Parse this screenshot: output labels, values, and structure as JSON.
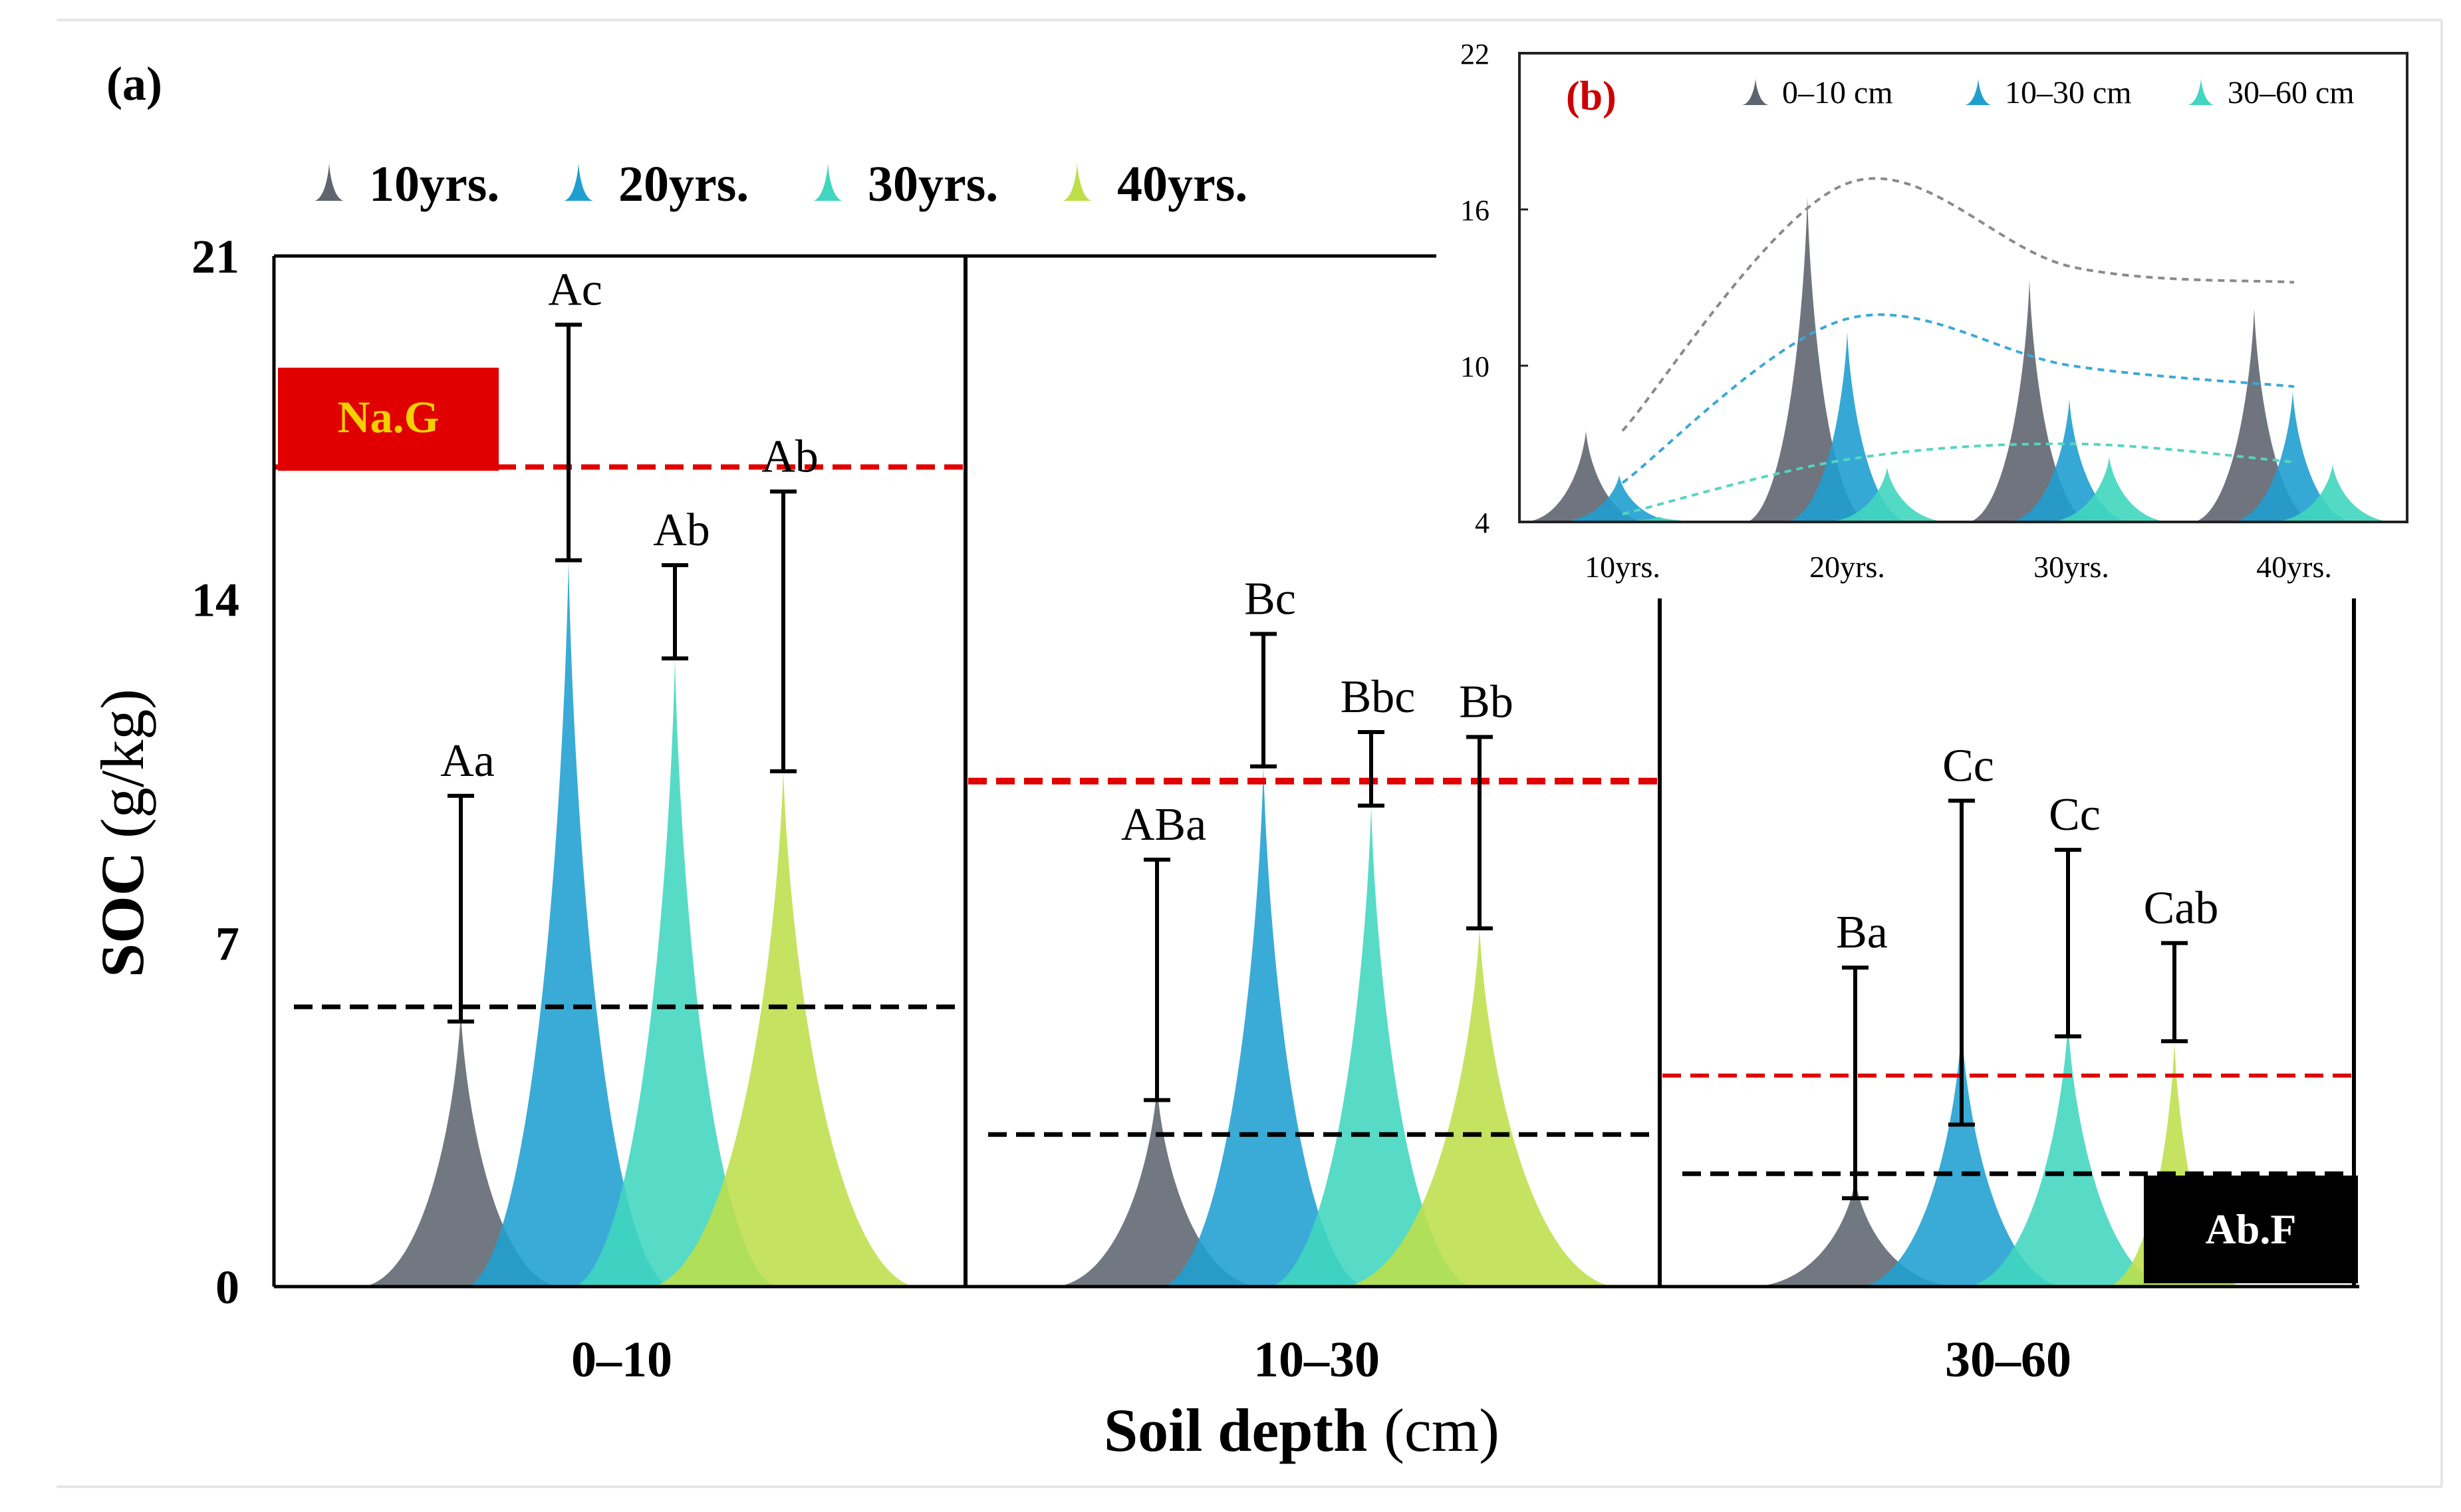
{
  "figure": {
    "panel_a_label": "(a)",
    "panel_b_label": "(b)",
    "colors": {
      "10yrs": "#5f6570",
      "20yrs": "#1f9fd0",
      "30yrs": "#40d6bf",
      "40yrs": "#bddf4a",
      "red_line": "#e00000",
      "black_line": "#000000",
      "label_red": "#cc0000"
    }
  },
  "chart_data": [
    {
      "type": "bar",
      "panel": "(a)",
      "xlabel_main": "Soil depth",
      "xlabel_unit": "(cm)",
      "ylabel_main": "SOC",
      "ylabel_unit": "(g/kg)",
      "ylim": [
        0,
        21
      ],
      "yticks": [
        "0",
        "7",
        "14",
        "21"
      ],
      "groups": [
        "0–10",
        "10–30",
        "30–60"
      ],
      "legend": {
        "placement": "top",
        "labels": [
          "10yrs.",
          "20yrs.",
          "30yrs.",
          "40yrs."
        ]
      },
      "series": [
        {
          "name": "10yrs.",
          "values": [
            5.6,
            4.1,
            2.2
          ],
          "err_low": [
            5.4,
            3.8,
            1.8
          ],
          "err_high": [
            10.0,
            8.7,
            6.5
          ],
          "letters": [
            "Aa",
            "ABa",
            "Ba"
          ]
        },
        {
          "name": "20yrs.",
          "values": [
            14.8,
            10.6,
            5.3
          ],
          "err_low": [
            14.8,
            10.6,
            3.3
          ],
          "err_high": [
            19.6,
            13.3,
            9.9
          ],
          "letters": [
            "Ac",
            "Bc",
            "Cc"
          ]
        },
        {
          "name": "30yrs.",
          "values": [
            12.8,
            9.8,
            5.4
          ],
          "err_low": [
            12.8,
            9.8,
            5.1
          ],
          "err_high": [
            14.7,
            11.3,
            8.9
          ],
          "letters": [
            "Ab",
            "Bbc",
            "Cc"
          ]
        },
        {
          "name": "40yrs.",
          "values": [
            10.5,
            7.3,
            5.0
          ],
          "err_low": [
            10.5,
            7.3,
            5.0
          ],
          "err_high": [
            16.2,
            11.2,
            7.0
          ],
          "letters": [
            "Ab",
            "Bb",
            "Cab"
          ]
        }
      ],
      "reference_lines": {
        "red": [
          16.7,
          10.3,
          4.3
        ],
        "black": [
          5.7,
          3.1,
          2.3
        ]
      },
      "annotations": {
        "na_g": "Na.G",
        "ab_f": "Ab.F"
      }
    },
    {
      "type": "bar",
      "panel": "(b)",
      "ylim": [
        4,
        22
      ],
      "yticks": [
        "4",
        "10",
        "16",
        "22"
      ],
      "categories": [
        "10yrs.",
        "20yrs.",
        "30yrs.",
        "40yrs."
      ],
      "legend": {
        "placement": "top-right",
        "labels": [
          "0–10 cm",
          "10–30 cm",
          "30–60 cm"
        ]
      },
      "series": [
        {
          "name": "0–10 cm",
          "values": [
            7.5,
            16.5,
            13.3,
            12.2
          ]
        },
        {
          "name": "10–30 cm",
          "values": [
            5.8,
            11.3,
            8.7,
            9.0
          ]
        },
        {
          "name": "30–60 cm",
          "values": [
            4.2,
            6.1,
            6.5,
            6.2
          ]
        }
      ],
      "trend_lines": [
        {
          "values": [
            7.5,
            17.0,
            13.8,
            13.2
          ]
        },
        {
          "values": [
            5.5,
            11.8,
            10.0,
            9.2
          ]
        },
        {
          "values": [
            4.3,
            6.4,
            7.0,
            6.3
          ]
        }
      ]
    }
  ]
}
